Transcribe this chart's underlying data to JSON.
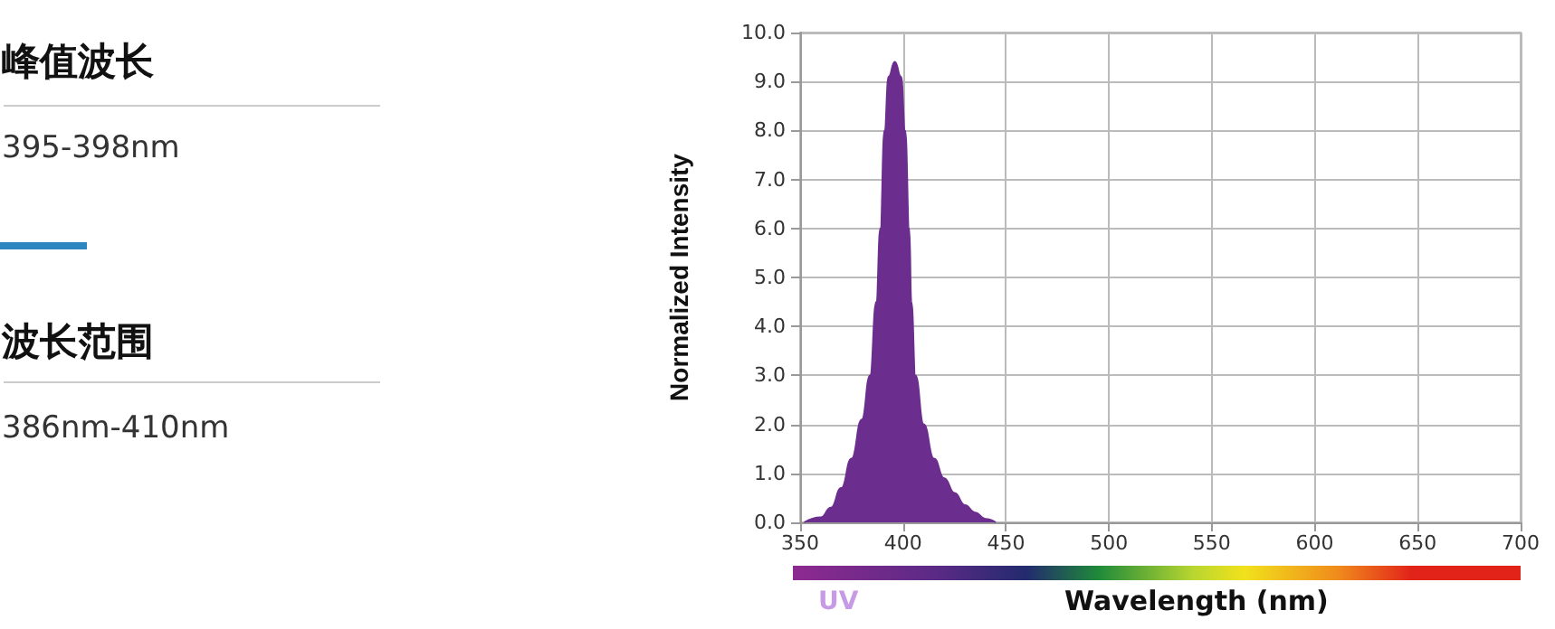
{
  "chart_data": [
    {
      "type": "other",
      "annotations": [
        "峰值波长",
        "395-398nm",
        "波长范围",
        "386nm-410nm"
      ]
    },
    {
      "type": "area",
      "xlabel": "Wavelength (nm)",
      "ylabel": "Normalized Intensity",
      "annotations": [
        "UV"
      ],
      "x": [
        352,
        360,
        365,
        370,
        375,
        380,
        384,
        387,
        389,
        391,
        393,
        396,
        399,
        401,
        403,
        404,
        406,
        410,
        415,
        420,
        425,
        430,
        435,
        440,
        445
      ],
      "series": [
        {
          "color": "#6b2d8e",
          "values": [
            0,
            0.1,
            0.3,
            0.7,
            1.3,
            2.1,
            3,
            4.5,
            6,
            8,
            9.1,
            9.4,
            9.1,
            8,
            6,
            4.5,
            3,
            2,
            1.3,
            0.9,
            0.6,
            0.35,
            0.2,
            0.07,
            0
          ]
        }
      ],
      "xlim": [
        350,
        700
      ],
      "xticks": [
        350,
        400,
        450,
        500,
        550,
        600,
        650,
        700
      ],
      "ylim": [
        0,
        10
      ],
      "yticks": [
        {
          "value": 0,
          "label": "0.0"
        },
        {
          "value": 1,
          "label": "1.0"
        },
        {
          "value": 2,
          "label": "2.0"
        },
        {
          "value": 3,
          "label": "3.0"
        },
        {
          "value": 4,
          "label": "4.0"
        },
        {
          "value": 5,
          "label": "5.0"
        },
        {
          "value": 6,
          "label": "6.0"
        },
        {
          "value": 7,
          "label": "7.0"
        },
        {
          "value": 8,
          "label": "8.0"
        },
        {
          "value": 9,
          "label": "9.0"
        },
        {
          "value": 10,
          "label": "10.0"
        }
      ],
      "grid": true,
      "marker": "none"
    }
  ]
}
